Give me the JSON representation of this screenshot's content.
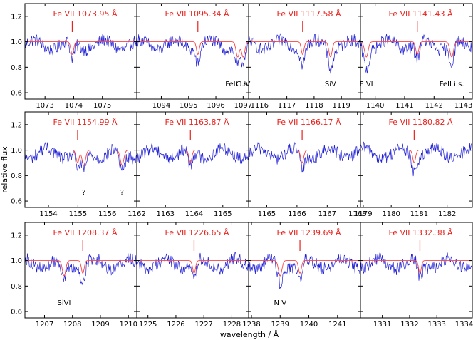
{
  "figure": {
    "ylabel": "relative flux",
    "xlabel": "wavelength / Å",
    "yticks": [
      "0.6",
      "0.8",
      "1.0",
      "1.2"
    ],
    "colors": {
      "observed": "#1f1fd6",
      "model": "#ff4040",
      "label": "#e8231e",
      "axis": "#000000"
    }
  },
  "chart_data": [
    {
      "type": "line",
      "title": "Fe VII 1073.95 Å",
      "line_wl": 1073.95,
      "xlim": [
        1072.3,
        1076.2
      ],
      "ylim": [
        0.55,
        1.3
      ],
      "xticks": [
        1073,
        1074,
        1075
      ],
      "features": []
    },
    {
      "type": "line",
      "title": "Fe VII 1095.34 Å",
      "line_wl": 1095.34,
      "xlim": [
        1093.1,
        1097.2
      ],
      "ylim": [
        0.55,
        1.3
      ],
      "xticks": [
        1094,
        1095,
        1096,
        1097
      ],
      "features": [
        {
          "text": "FeII i.s.",
          "wl": 1096.8
        },
        {
          "text": "C IV",
          "wl": 1097.0
        }
      ]
    },
    {
      "type": "line",
      "title": "Fe VII 1117.58 Å",
      "line_wl": 1117.58,
      "xlim": [
        1115.6,
        1119.7
      ],
      "ylim": [
        0.55,
        1.3
      ],
      "xticks": [
        1116,
        1117,
        1118,
        1119
      ],
      "features": [
        {
          "text": "SiV",
          "wl": 1118.6
        }
      ]
    },
    {
      "type": "line",
      "title": "Fe VII 1141.43 Å",
      "line_wl": 1141.43,
      "xlim": [
        1139.5,
        1143.3
      ],
      "ylim": [
        0.55,
        1.3
      ],
      "xticks": [
        1140,
        1141,
        1142,
        1143
      ],
      "features": [
        {
          "text": "F VI",
          "wl": 1139.7
        },
        {
          "text": "FeII i.s.",
          "wl": 1142.6
        }
      ]
    },
    {
      "type": "line",
      "title": "Fe VII 1154.99 Å",
      "line_wl": 1154.99,
      "xlim": [
        1153.2,
        1157.0
      ],
      "ylim": [
        0.55,
        1.3
      ],
      "xticks": [
        1154,
        1155,
        1156
      ],
      "features": [
        {
          "text": "?",
          "wl": 1155.2
        },
        {
          "text": "?",
          "wl": 1156.5
        }
      ]
    },
    {
      "type": "line",
      "title": "Fe VII 1163.87 Å",
      "line_wl": 1163.87,
      "xlim": [
        1162.0,
        1165.9
      ],
      "ylim": [
        0.55,
        1.3
      ],
      "xticks": [
        1162,
        1163,
        1164,
        1165
      ],
      "features": []
    },
    {
      "type": "line",
      "title": "Fe VII 1166.17 Å",
      "line_wl": 1166.17,
      "xlim": [
        1164.4,
        1168.1
      ],
      "ylim": [
        0.55,
        1.3
      ],
      "xticks": [
        1165,
        1166,
        1167,
        1168
      ],
      "features": []
    },
    {
      "type": "line",
      "title": "Fe VII 1180.82 Å",
      "line_wl": 1180.82,
      "xlim": [
        1178.9,
        1182.9
      ],
      "ylim": [
        0.55,
        1.3
      ],
      "xticks": [
        1179,
        1180,
        1181,
        1182
      ],
      "features": []
    },
    {
      "type": "line",
      "title": "Fe VII 1208.37 Å",
      "line_wl": 1208.37,
      "xlim": [
        1206.3,
        1210.3
      ],
      "ylim": [
        0.55,
        1.3
      ],
      "xticks": [
        1207,
        1208,
        1209,
        1210
      ],
      "features": [
        {
          "text": "SiVI",
          "wl": 1207.7
        }
      ]
    },
    {
      "type": "line",
      "title": "Fe VII 1226.65 Å",
      "line_wl": 1226.65,
      "xlim": [
        1224.6,
        1228.6
      ],
      "ylim": [
        0.55,
        1.3
      ],
      "xticks": [
        1225,
        1226,
        1227,
        1228
      ],
      "features": []
    },
    {
      "type": "line",
      "title": "Fe VII 1239.69 Å",
      "line_wl": 1239.69,
      "xlim": [
        1237.9,
        1241.8
      ],
      "ylim": [
        0.55,
        1.3
      ],
      "xticks": [
        1238,
        1239,
        1240,
        1241
      ],
      "features": [
        {
          "text": "N V",
          "wl": 1239.0
        }
      ]
    },
    {
      "type": "line",
      "title": "Fe VII 1332.38 Å",
      "line_wl": 1332.38,
      "xlim": [
        1330.2,
        1334.3
      ],
      "ylim": [
        0.55,
        1.3
      ],
      "xticks": [
        1331,
        1332,
        1333,
        1334
      ],
      "features": []
    }
  ]
}
